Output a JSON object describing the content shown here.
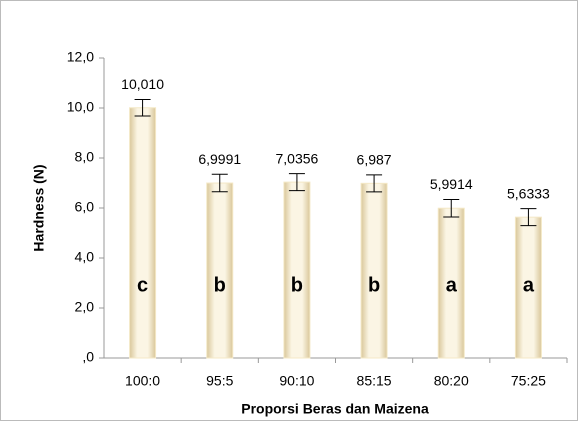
{
  "chart_data": {
    "type": "bar",
    "y_label": "Hardness (N)",
    "x_label": "Proporsi Beras dan Maizena",
    "categories": [
      "100:0",
      "95:5",
      "90:10",
      "85:15",
      "80:20",
      "75:25"
    ],
    "values": [
      10.01,
      6.9991,
      7.0356,
      6.987,
      5.9914,
      5.6333
    ],
    "value_labels": [
      "10,010",
      "6,9991",
      "7,0356",
      "6,987",
      "5,9914",
      "5,6333"
    ],
    "errors": [
      0.33,
      0.35,
      0.34,
      0.34,
      0.35,
      0.34
    ],
    "annotations": [
      "c",
      "b",
      "b",
      "b",
      "a",
      "a"
    ],
    "color": "#f4e8c6",
    "ylim": [
      0,
      12
    ],
    "yticks": [
      {
        "value": 0,
        "label": ",0"
      },
      {
        "value": 2,
        "label": "2,0"
      },
      {
        "value": 4,
        "label": "4,0"
      },
      {
        "value": 6,
        "label": "6,0"
      },
      {
        "value": 8,
        "label": "8,0"
      },
      {
        "value": 10,
        "label": "10,0"
      },
      {
        "value": 12,
        "label": "12,0"
      }
    ],
    "grid": false
  }
}
